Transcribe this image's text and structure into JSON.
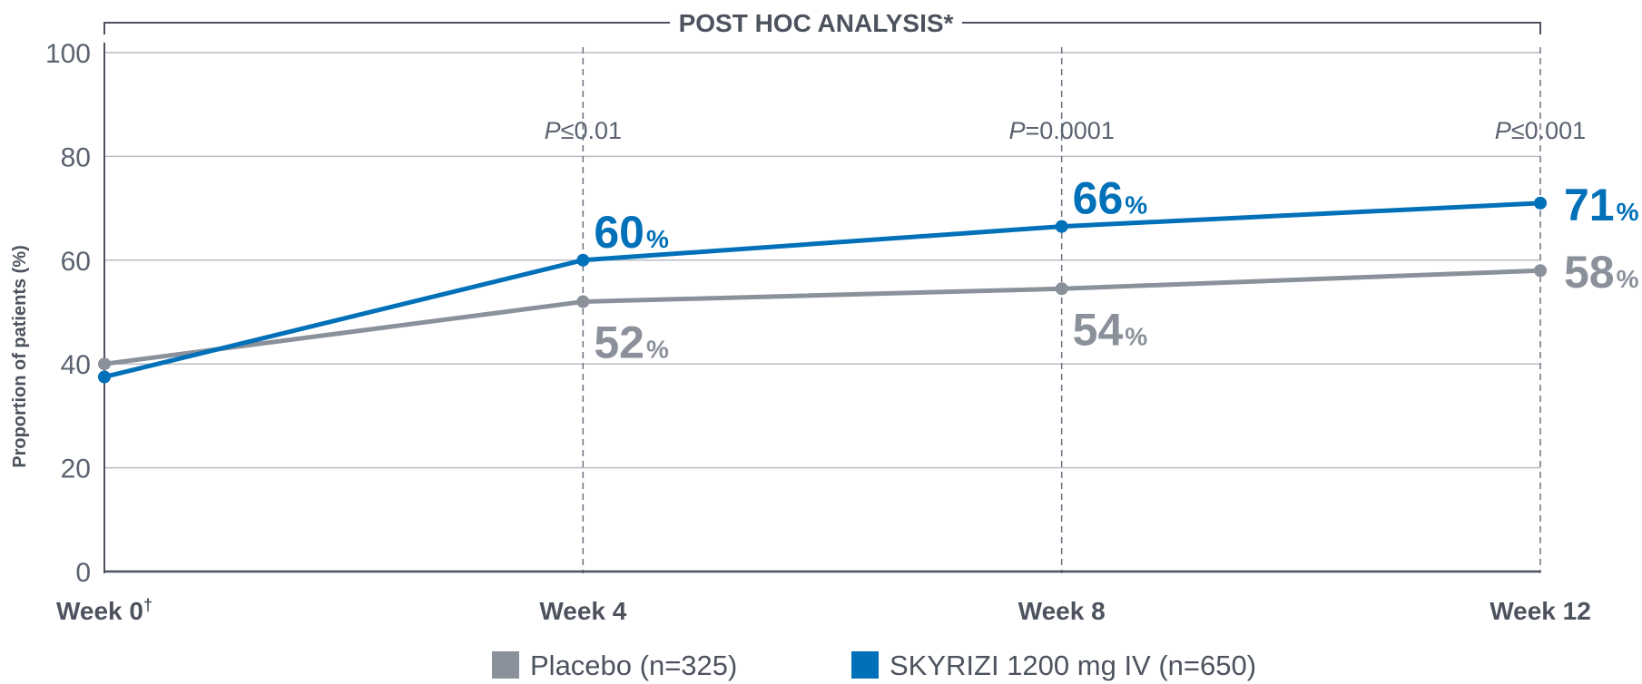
{
  "chart_data": {
    "type": "line",
    "banner": "POST HOC ANALYSIS*",
    "ylabel": "Proportion of patients (%)",
    "ylim": [
      0,
      100
    ],
    "yticks": [
      "0",
      "20",
      "40",
      "60",
      "80",
      "100"
    ],
    "ytick_values": [
      0,
      20,
      40,
      60,
      80,
      100
    ],
    "categories": [
      "Week 0",
      "Week 4",
      "Week 8",
      "Week 12"
    ],
    "category_marks": [
      "†",
      "",
      "",
      ""
    ],
    "p_values": [
      {
        "italic": "",
        "rest": ""
      },
      {
        "italic": "P",
        "rest": "≤0.01"
      },
      {
        "italic": "P",
        "rest": "=0.0001"
      },
      {
        "italic": "P",
        "rest": "≤0.001"
      }
    ],
    "series": [
      {
        "name": "Placebo (n=325)",
        "color": "#8a919b",
        "values": [
          40,
          52,
          54.5,
          58
        ],
        "labels": [
          "",
          "52",
          "54",
          "58"
        ]
      },
      {
        "name": "SKYRIZI 1200 mg IV (n=650)",
        "color": "#0070b8",
        "values": [
          37.5,
          60,
          66.5,
          71
        ],
        "labels": [
          "",
          "60",
          "66",
          "71"
        ]
      }
    ],
    "percent_symbol": "%",
    "legend_position": "bottom-center",
    "grid": true
  }
}
